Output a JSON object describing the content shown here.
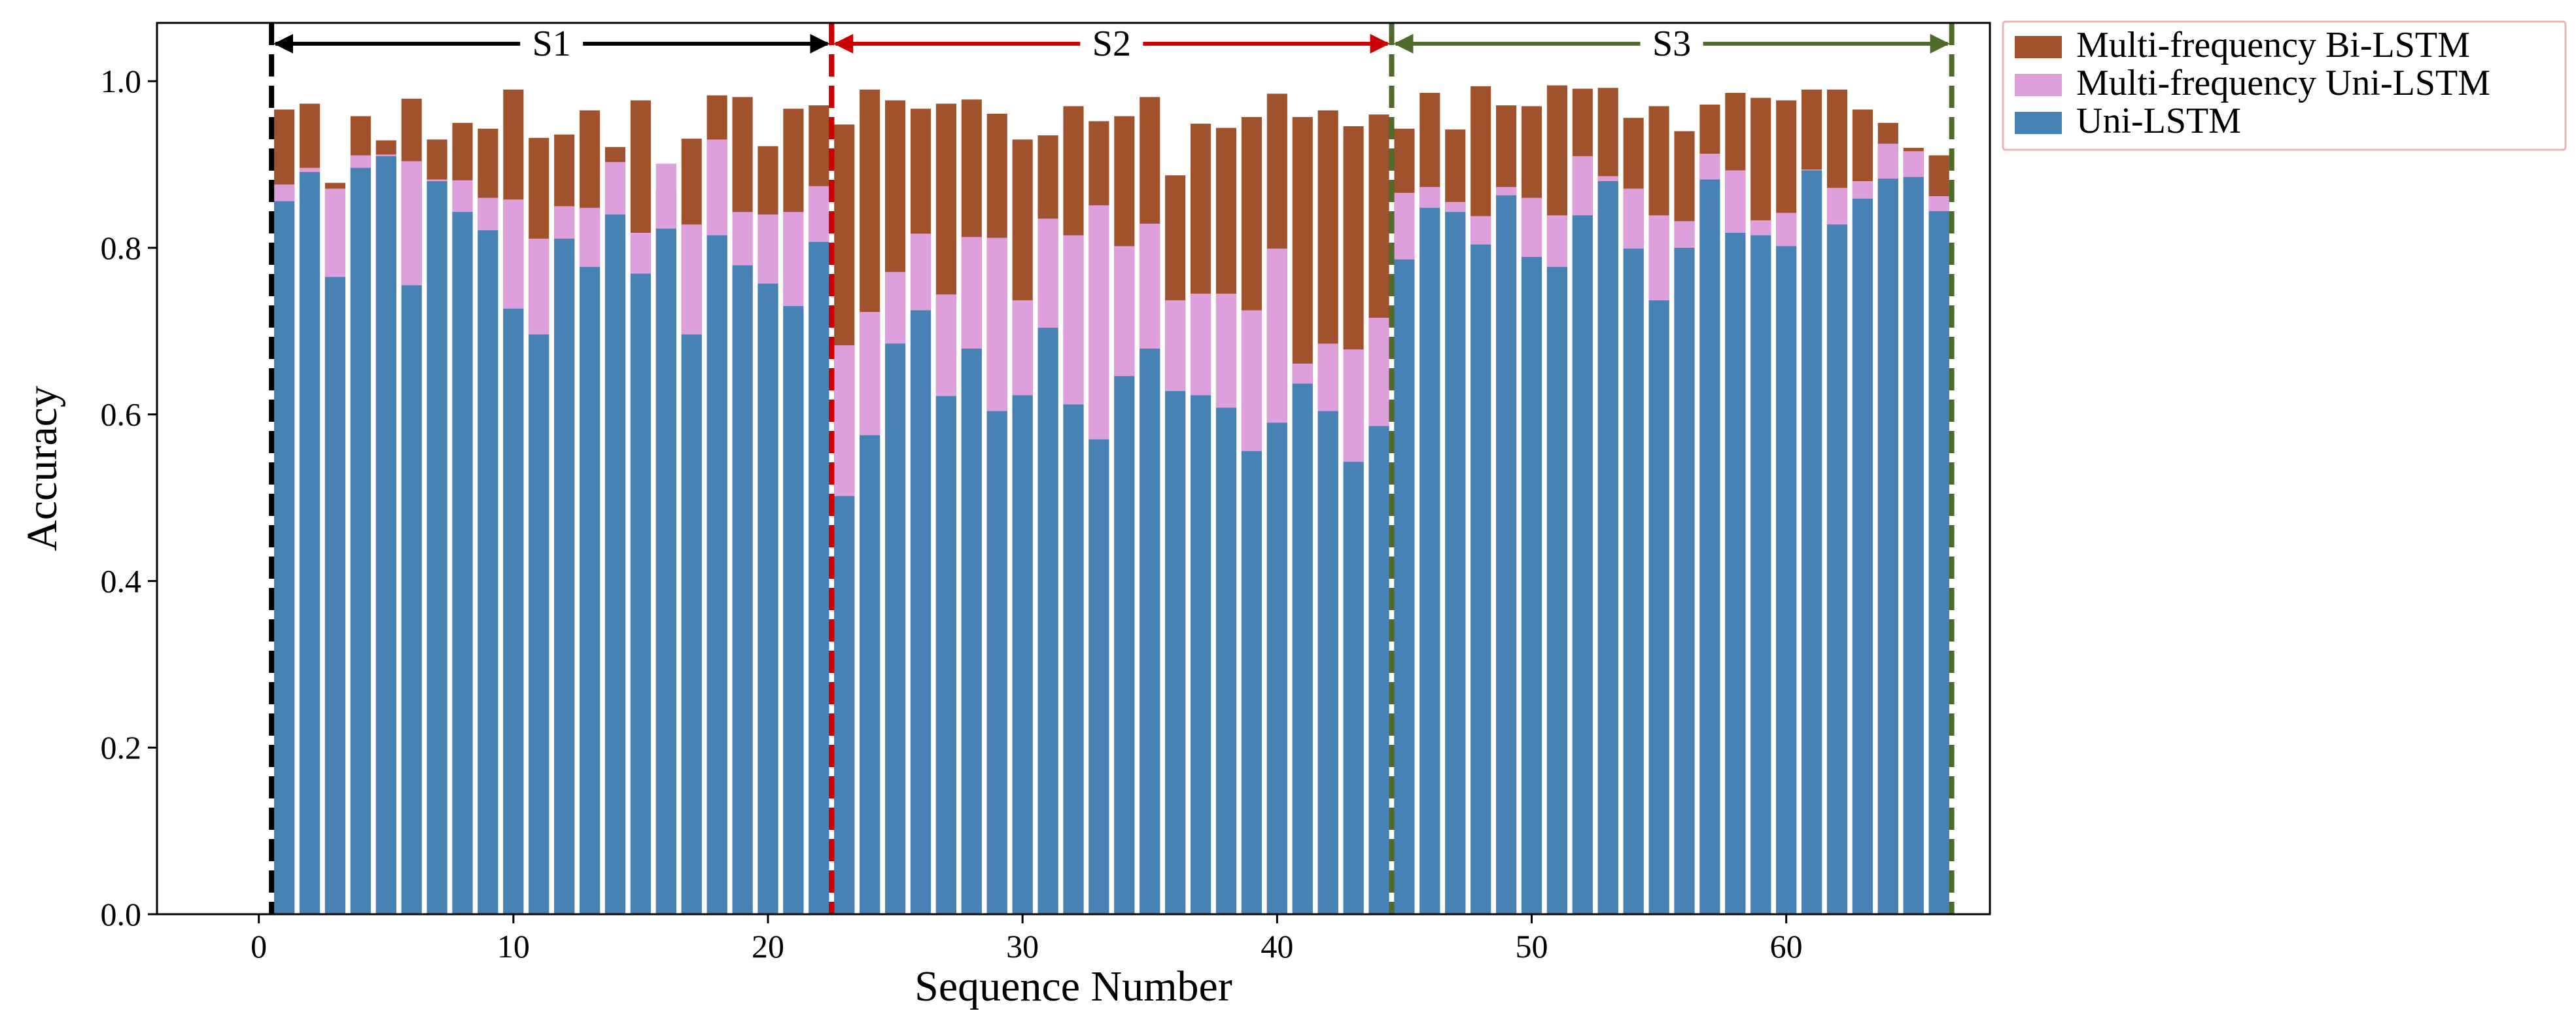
{
  "chart_data": {
    "type": "bar",
    "stacked_overlay": true,
    "xlabel": "Sequence Number",
    "ylabel": "Accuracy",
    "xlim": [
      -4,
      68
    ],
    "ylim": [
      0,
      1.07
    ],
    "xticks": [
      0,
      10,
      20,
      30,
      40,
      50,
      60
    ],
    "yticks": [
      0.0,
      0.2,
      0.4,
      0.6,
      0.8,
      1.0
    ],
    "xtick_labels": [
      "0",
      "10",
      "20",
      "30",
      "40",
      "50",
      "60"
    ],
    "ytick_labels": [
      "0.0",
      "0.2",
      "0.4",
      "0.6",
      "0.8",
      "1.0"
    ],
    "legend_position": "outside-top-right",
    "x": [
      1,
      2,
      3,
      4,
      5,
      6,
      7,
      8,
      9,
      10,
      11,
      12,
      13,
      14,
      15,
      16,
      17,
      18,
      19,
      20,
      21,
      22,
      23,
      24,
      25,
      26,
      27,
      28,
      29,
      30,
      31,
      32,
      33,
      34,
      35,
      36,
      37,
      38,
      39,
      40,
      41,
      42,
      43,
      44,
      45,
      46,
      47,
      48,
      49,
      50,
      51,
      52,
      53,
      54,
      55,
      56,
      57,
      58,
      59,
      60,
      61,
      62,
      63,
      64,
      65,
      66
    ],
    "series": [
      {
        "name": "Multi-frequency Bi-LSTM",
        "color": "#A0522D",
        "values": [
          0.966,
          0.973,
          0.878,
          0.958,
          0.929,
          0.979,
          0.93,
          0.95,
          0.943,
          0.99,
          0.932,
          0.936,
          0.965,
          0.921,
          0.977,
          0.868,
          0.931,
          0.983,
          0.981,
          0.922,
          0.967,
          0.971,
          0.948,
          0.99,
          0.977,
          0.967,
          0.973,
          0.978,
          0.961,
          0.93,
          0.935,
          0.97,
          0.952,
          0.958,
          0.981,
          0.887,
          0.949,
          0.944,
          0.957,
          0.985,
          0.957,
          0.965,
          0.946,
          0.96,
          0.943,
          0.986,
          0.942,
          0.994,
          0.971,
          0.97,
          0.995,
          0.991,
          0.992,
          0.956,
          0.97,
          0.94,
          0.972,
          0.986,
          0.98,
          0.977,
          0.99,
          0.99,
          0.966,
          0.95,
          0.92,
          0.911
        ]
      },
      {
        "name": "Multi-frequency Uni-LSTM",
        "color": "#DDA0DD",
        "values": [
          0.876,
          0.896,
          0.871,
          0.911,
          0.912,
          0.904,
          0.882,
          0.881,
          0.86,
          0.858,
          0.811,
          0.85,
          0.848,
          0.903,
          0.818,
          0.901,
          0.828,
          0.93,
          0.843,
          0.84,
          0.843,
          0.874,
          0.683,
          0.723,
          0.771,
          0.817,
          0.744,
          0.813,
          0.812,
          0.737,
          0.835,
          0.815,
          0.851,
          0.802,
          0.829,
          0.737,
          0.745,
          0.745,
          0.725,
          0.799,
          0.661,
          0.685,
          0.678,
          0.716,
          0.866,
          0.873,
          0.855,
          0.838,
          0.873,
          0.86,
          0.839,
          0.91,
          0.886,
          0.871,
          0.839,
          0.832,
          0.913,
          0.893,
          0.833,
          0.842,
          0.894,
          0.872,
          0.88,
          0.925,
          0.916,
          0.862
        ]
      },
      {
        "name": "Uni-LSTM",
        "color": "#4682B4",
        "values": [
          0.856,
          0.891,
          0.765,
          0.896,
          0.91,
          0.755,
          0.88,
          0.843,
          0.821,
          0.727,
          0.696,
          0.811,
          0.777,
          0.84,
          0.769,
          0.823,
          0.696,
          0.815,
          0.779,
          0.757,
          0.73,
          0.807,
          0.502,
          0.575,
          0.685,
          0.725,
          0.622,
          0.679,
          0.604,
          0.623,
          0.704,
          0.612,
          0.57,
          0.646,
          0.679,
          0.628,
          0.623,
          0.608,
          0.556,
          0.59,
          0.637,
          0.604,
          0.543,
          0.586,
          0.786,
          0.848,
          0.843,
          0.804,
          0.863,
          0.789,
          0.777,
          0.839,
          0.88,
          0.799,
          0.737,
          0.8,
          0.882,
          0.818,
          0.815,
          0.802,
          0.893,
          0.828,
          0.859,
          0.883,
          0.885,
          0.844
        ]
      }
    ],
    "sections": [
      {
        "label": "S1",
        "start": 0.5,
        "end": 22.5,
        "color": "#000000"
      },
      {
        "label": "S2",
        "start": 22.5,
        "end": 44.5,
        "color": "#CC0000"
      },
      {
        "label": "S3",
        "start": 44.5,
        "end": 66.5,
        "color": "#4F6B2A"
      }
    ]
  }
}
